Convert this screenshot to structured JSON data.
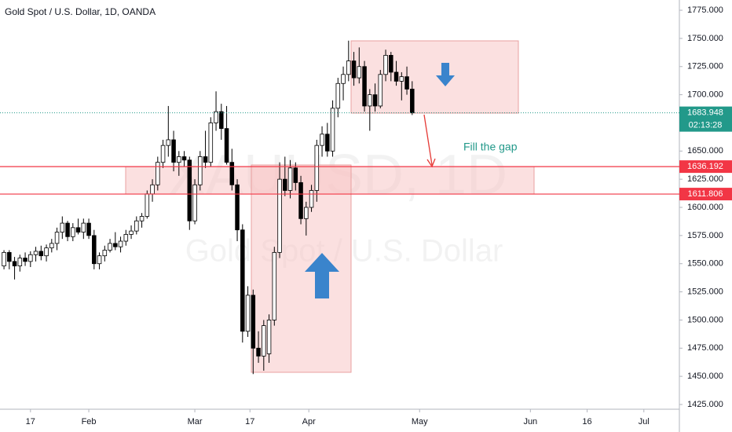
{
  "chart_data": {
    "type": "candlestick",
    "title": "Gold Spot / U.S. Dollar, 1D, OANDA",
    "watermark": [
      "XAUUSD, 1D",
      "Gold Spot / U.S. Dollar"
    ],
    "annotation": "Fill the gap",
    "open": [
      1548,
      1560,
      1552,
      1548,
      1555,
      1552,
      1558,
      1561,
      1557,
      1564,
      1568,
      1578,
      1586,
      1574,
      1582,
      1578,
      1586,
      1575,
      1550,
      1557,
      1562,
      1568,
      1565,
      1570,
      1576,
      1579,
      1588,
      1592,
      1612,
      1620,
      1640,
      1655,
      1660,
      1640,
      1645,
      1642,
      1588,
      1620,
      1645,
      1640,
      1675,
      1685,
      1670,
      1640,
      1620,
      1580,
      1490,
      1522,
      1475,
      1468,
      1470,
      1500,
      1560,
      1625,
      1615,
      1635,
      1622,
      1590,
      1600,
      1615,
      1655,
      1665,
      1650,
      1688,
      1710,
      1718,
      1730,
      1715,
      1725,
      1690,
      1700,
      1690,
      1718,
      1735,
      1720,
      1712,
      1716,
      1705
    ],
    "high": [
      1562,
      1562,
      1556,
      1558,
      1560,
      1561,
      1565,
      1566,
      1567,
      1572,
      1582,
      1592,
      1588,
      1586,
      1590,
      1590,
      1590,
      1580,
      1560,
      1566,
      1572,
      1578,
      1574,
      1580,
      1584,
      1592,
      1595,
      1615,
      1625,
      1645,
      1660,
      1690,
      1668,
      1650,
      1650,
      1645,
      1625,
      1650,
      1668,
      1680,
      1703,
      1692,
      1690,
      1652,
      1625,
      1585,
      1530,
      1527,
      1490,
      1500,
      1505,
      1565,
      1640,
      1645,
      1642,
      1640,
      1628,
      1605,
      1620,
      1660,
      1672,
      1675,
      1695,
      1715,
      1725,
      1748,
      1738,
      1742,
      1730,
      1705,
      1710,
      1722,
      1740,
      1738,
      1730,
      1720,
      1725,
      1712
    ],
    "low": [
      1545,
      1545,
      1536,
      1543,
      1548,
      1547,
      1552,
      1553,
      1552,
      1560,
      1562,
      1572,
      1570,
      1570,
      1576,
      1572,
      1572,
      1545,
      1545,
      1552,
      1560,
      1562,
      1560,
      1566,
      1572,
      1576,
      1582,
      1590,
      1605,
      1615,
      1635,
      1645,
      1632,
      1628,
      1636,
      1580,
      1585,
      1615,
      1635,
      1636,
      1668,
      1660,
      1638,
      1615,
      1570,
      1480,
      1485,
      1452,
      1462,
      1455,
      1462,
      1495,
      1555,
      1610,
      1608,
      1615,
      1585,
      1575,
      1596,
      1605,
      1645,
      1645,
      1645,
      1680,
      1695,
      1712,
      1708,
      1710,
      1685,
      1668,
      1685,
      1688,
      1712,
      1712,
      1708,
      1695,
      1700,
      1682
    ],
    "close": [
      1560,
      1552,
      1548,
      1555,
      1552,
      1558,
      1561,
      1557,
      1564,
      1568,
      1578,
      1586,
      1574,
      1582,
      1578,
      1586,
      1575,
      1550,
      1557,
      1562,
      1568,
      1565,
      1570,
      1576,
      1579,
      1588,
      1592,
      1612,
      1620,
      1640,
      1655,
      1660,
      1640,
      1645,
      1642,
      1588,
      1620,
      1645,
      1640,
      1675,
      1685,
      1670,
      1640,
      1620,
      1580,
      1490,
      1522,
      1475,
      1468,
      1495,
      1500,
      1560,
      1625,
      1615,
      1635,
      1622,
      1590,
      1600,
      1615,
      1655,
      1665,
      1650,
      1688,
      1710,
      1718,
      1730,
      1715,
      1725,
      1690,
      1700,
      1690,
      1718,
      1735,
      1720,
      1712,
      1716,
      1705,
      1683.948
    ],
    "up_color": "#ffffff",
    "down_color": "#000000",
    "xlim": [
      -0.75,
      127.4
    ],
    "xticks": [
      {
        "value": 5,
        "label": "17"
      },
      {
        "value": 16,
        "label": "Feb"
      },
      {
        "value": 36,
        "label": "Mar"
      },
      {
        "value": 46.4,
        "label": "17"
      },
      {
        "value": 57.5,
        "label": "Apr"
      },
      {
        "value": 78.4,
        "label": "May"
      },
      {
        "value": 99.3,
        "label": "Jun"
      },
      {
        "value": 110,
        "label": "16"
      },
      {
        "value": 120.7,
        "label": "Jul"
      }
    ],
    "ylim": [
      1420.8,
      1784.1
    ],
    "yticks": [
      {
        "value": 1425,
        "label": "1425.000"
      },
      {
        "value": 1450,
        "label": "1450.000"
      },
      {
        "value": 1475,
        "label": "1475.000"
      },
      {
        "value": 1500,
        "label": "1500.000"
      },
      {
        "value": 1525,
        "label": "1525.000"
      },
      {
        "value": 1550,
        "label": "1550.000"
      },
      {
        "value": 1575,
        "label": "1575.000"
      },
      {
        "value": 1600,
        "label": "1600.000"
      },
      {
        "value": 1625,
        "label": "1625.000"
      },
      {
        "value": 1650,
        "label": "1650.000"
      },
      {
        "value": 1675,
        "label": "1675.000"
      },
      {
        "value": 1700,
        "label": "1700.000"
      },
      {
        "value": 1725,
        "label": "1725.000"
      },
      {
        "value": 1750,
        "label": "1750.000"
      },
      {
        "value": 1775,
        "label": "1775.000"
      }
    ],
    "levels": [
      {
        "value": 1636.192,
        "color": "#f23645"
      },
      {
        "value": 1611.806,
        "color": "#f23645"
      }
    ],
    "last_price": {
      "value": 1683.948,
      "countdown": "02:13:28",
      "color": "#22998a"
    }
  }
}
